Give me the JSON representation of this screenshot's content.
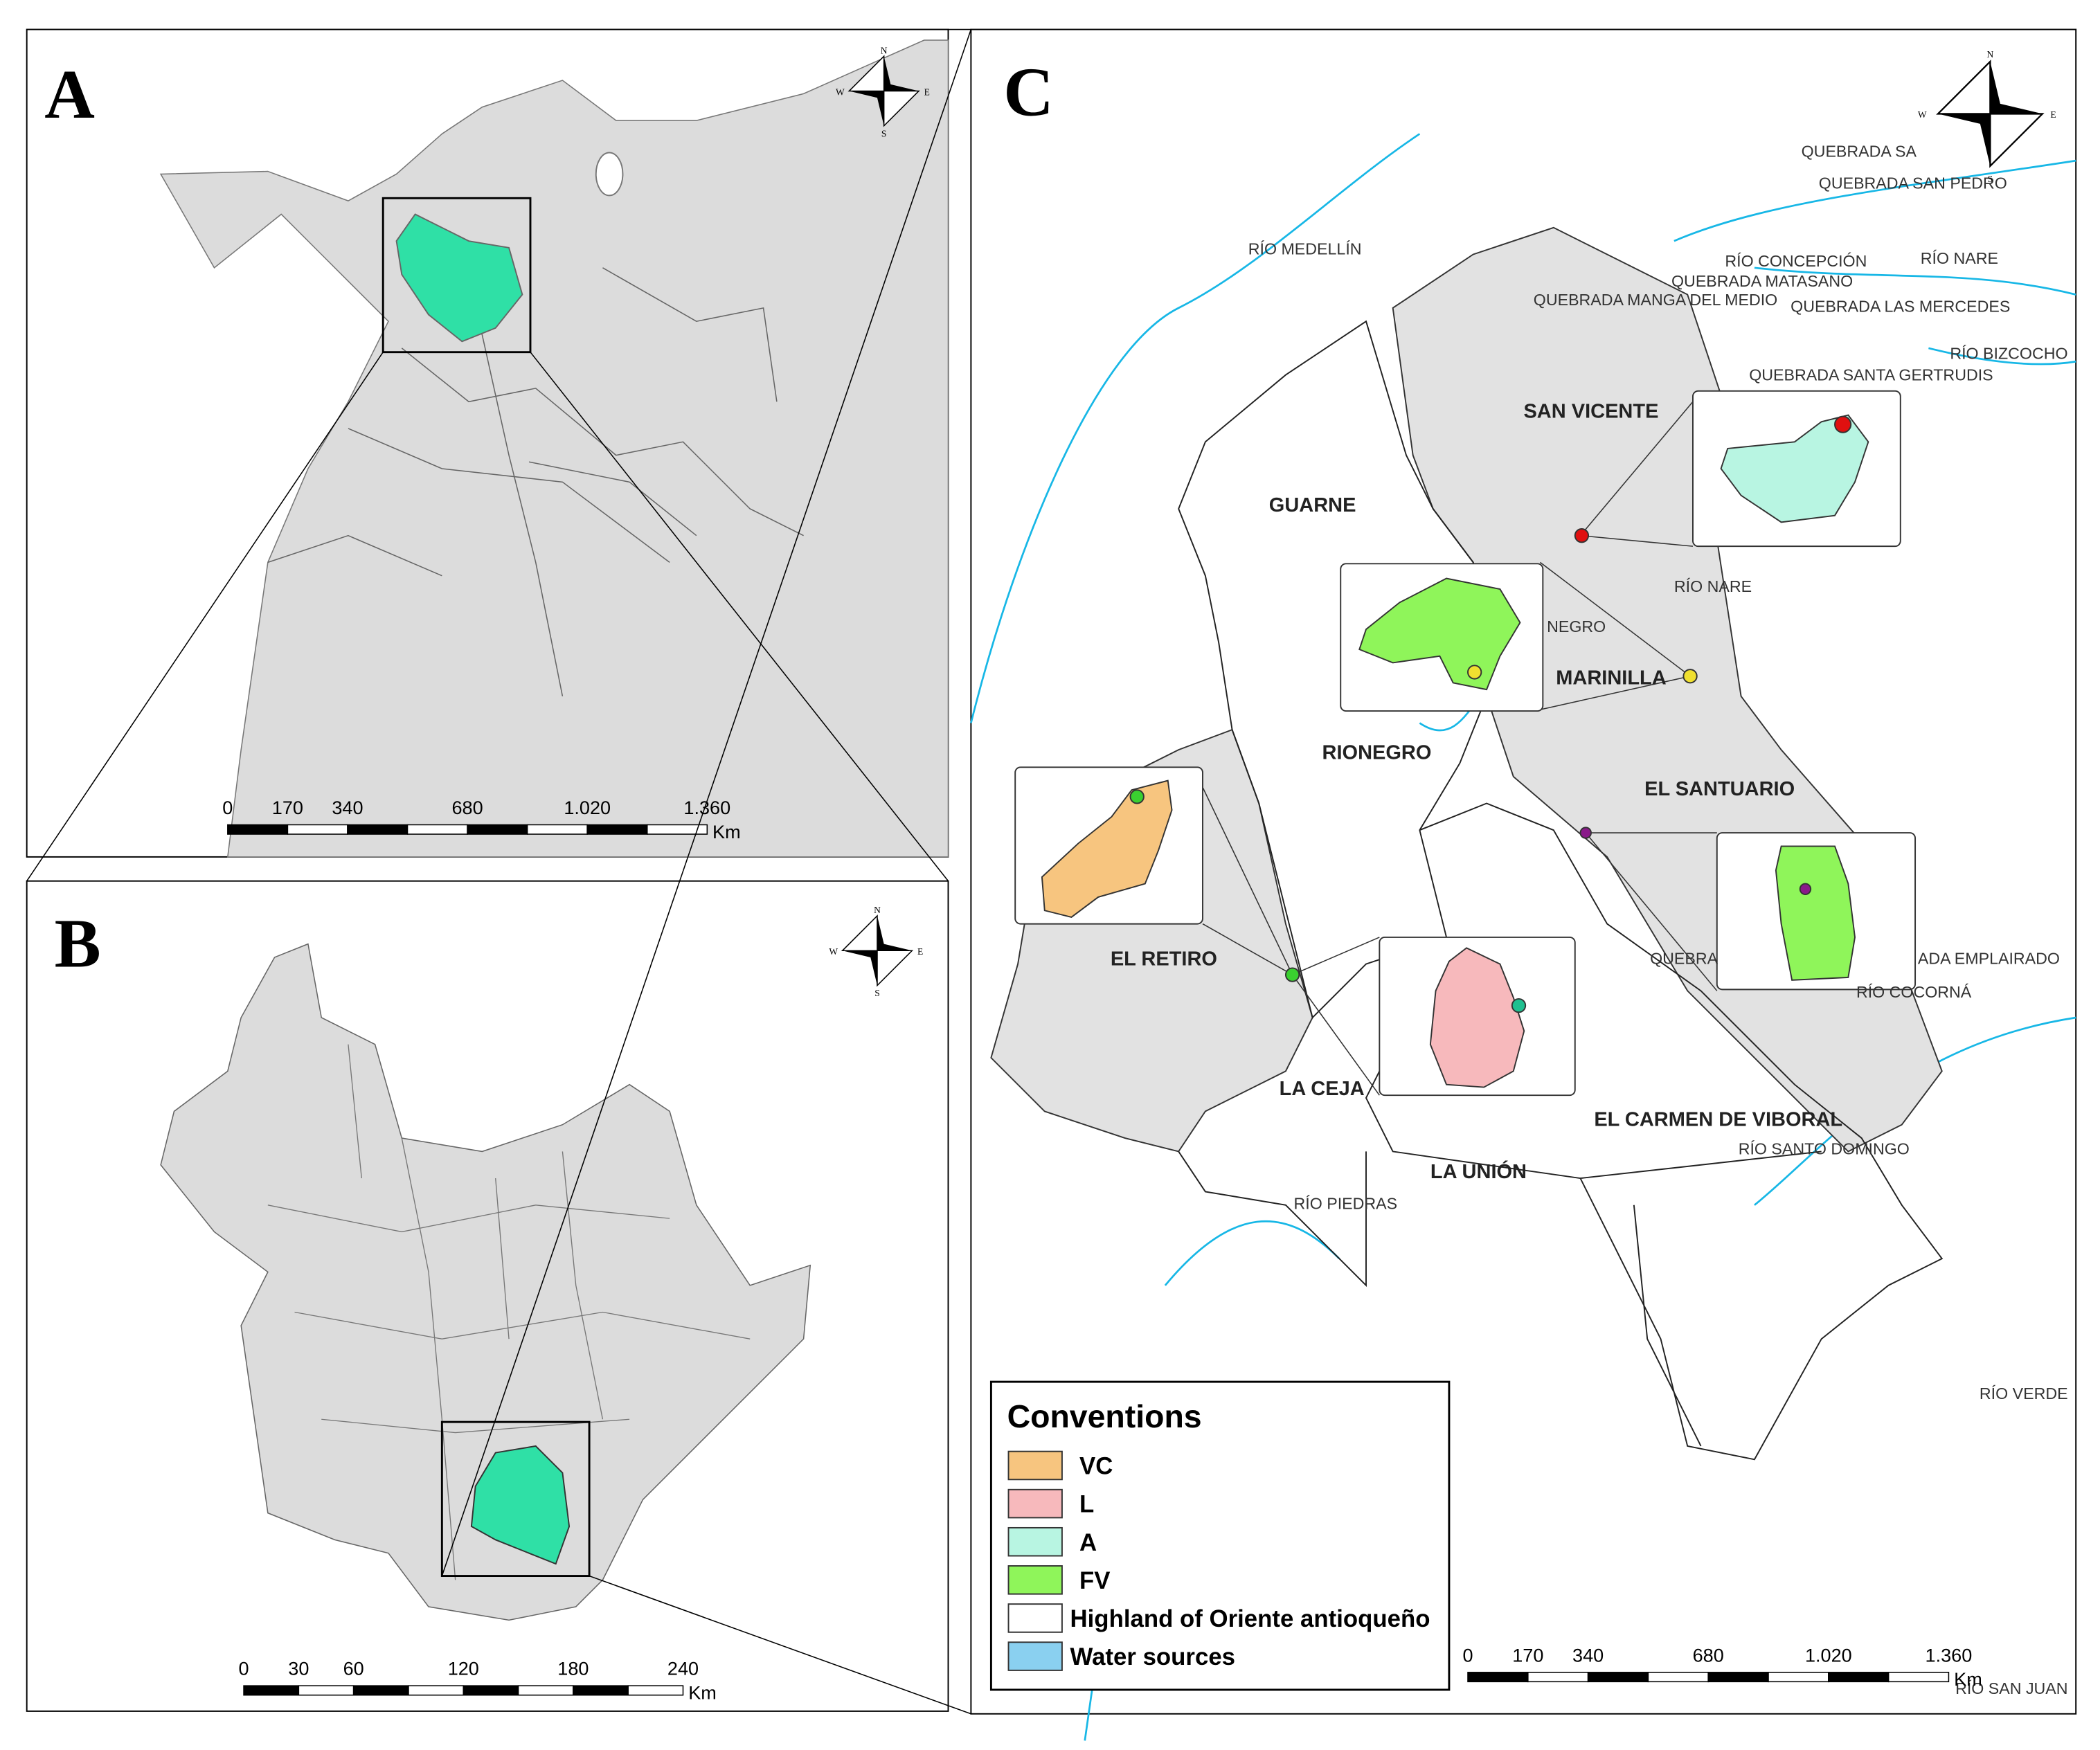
{
  "panels": [
    {
      "label": "A",
      "scale_ticks": [
        "0",
        "170",
        "340",
        "680",
        "1.020",
        "1.360"
      ],
      "scale_unit": "Km"
    },
    {
      "label": "B",
      "scale_ticks": [
        "0",
        "30",
        "60",
        "120",
        "180",
        "240"
      ],
      "scale_unit": "Km"
    },
    {
      "label": "C",
      "scale_ticks": [
        "0",
        "170",
        "340",
        "680",
        "1.020",
        "1.360"
      ],
      "scale_unit": "Km"
    }
  ],
  "compass": {
    "n": "N",
    "s": "S",
    "e": "E",
    "w": "W"
  },
  "municipalities": [
    "SAN VICENTE",
    "GUARNE",
    "MARINILLA",
    "RIONEGRO",
    "EL SANTUARIO",
    "EL RETIRO",
    "LA CEJA",
    "LA UNIÓN",
    "EL CARMEN DE VIBORAL",
    "NEGRO"
  ],
  "rivers": [
    "RÍO MEDELLÍN",
    "QUEBRADA SA",
    "QUEBRADA SAN PEDRO",
    "RÍO CONCEPCIÓN",
    "RÍO NARE",
    "QUEBRADA MATASANO",
    "QUEBRADA MANGA DEL MEDIO",
    "QUEBRADA LAS MERCEDES",
    "RÍO BIZCOCHO",
    "QUEBRADA SANTA GERTRUDIS",
    "RÍO NARE",
    "QUEBRA",
    "ADA EMPLAIRADO",
    "RÍO COCORNÁ",
    "RÍO SANTO DOMINGO",
    "RÍO PIEDRAS",
    "RÍO VERDE",
    "RÍO SAN JUAN"
  ],
  "legend": {
    "title": "Conventions",
    "items": [
      {
        "label": "VC",
        "color": "#f7c57f"
      },
      {
        "label": "L",
        "color": "#f7b9bc"
      },
      {
        "label": "A",
        "color": "#b8f5e2"
      },
      {
        "label": "FV",
        "color": "#8ff55a"
      },
      {
        "label": "Highland of Oriente antioqueño",
        "color": "#ffffff"
      },
      {
        "label": "Water sources",
        "color": "#8ad0f0"
      }
    ]
  }
}
